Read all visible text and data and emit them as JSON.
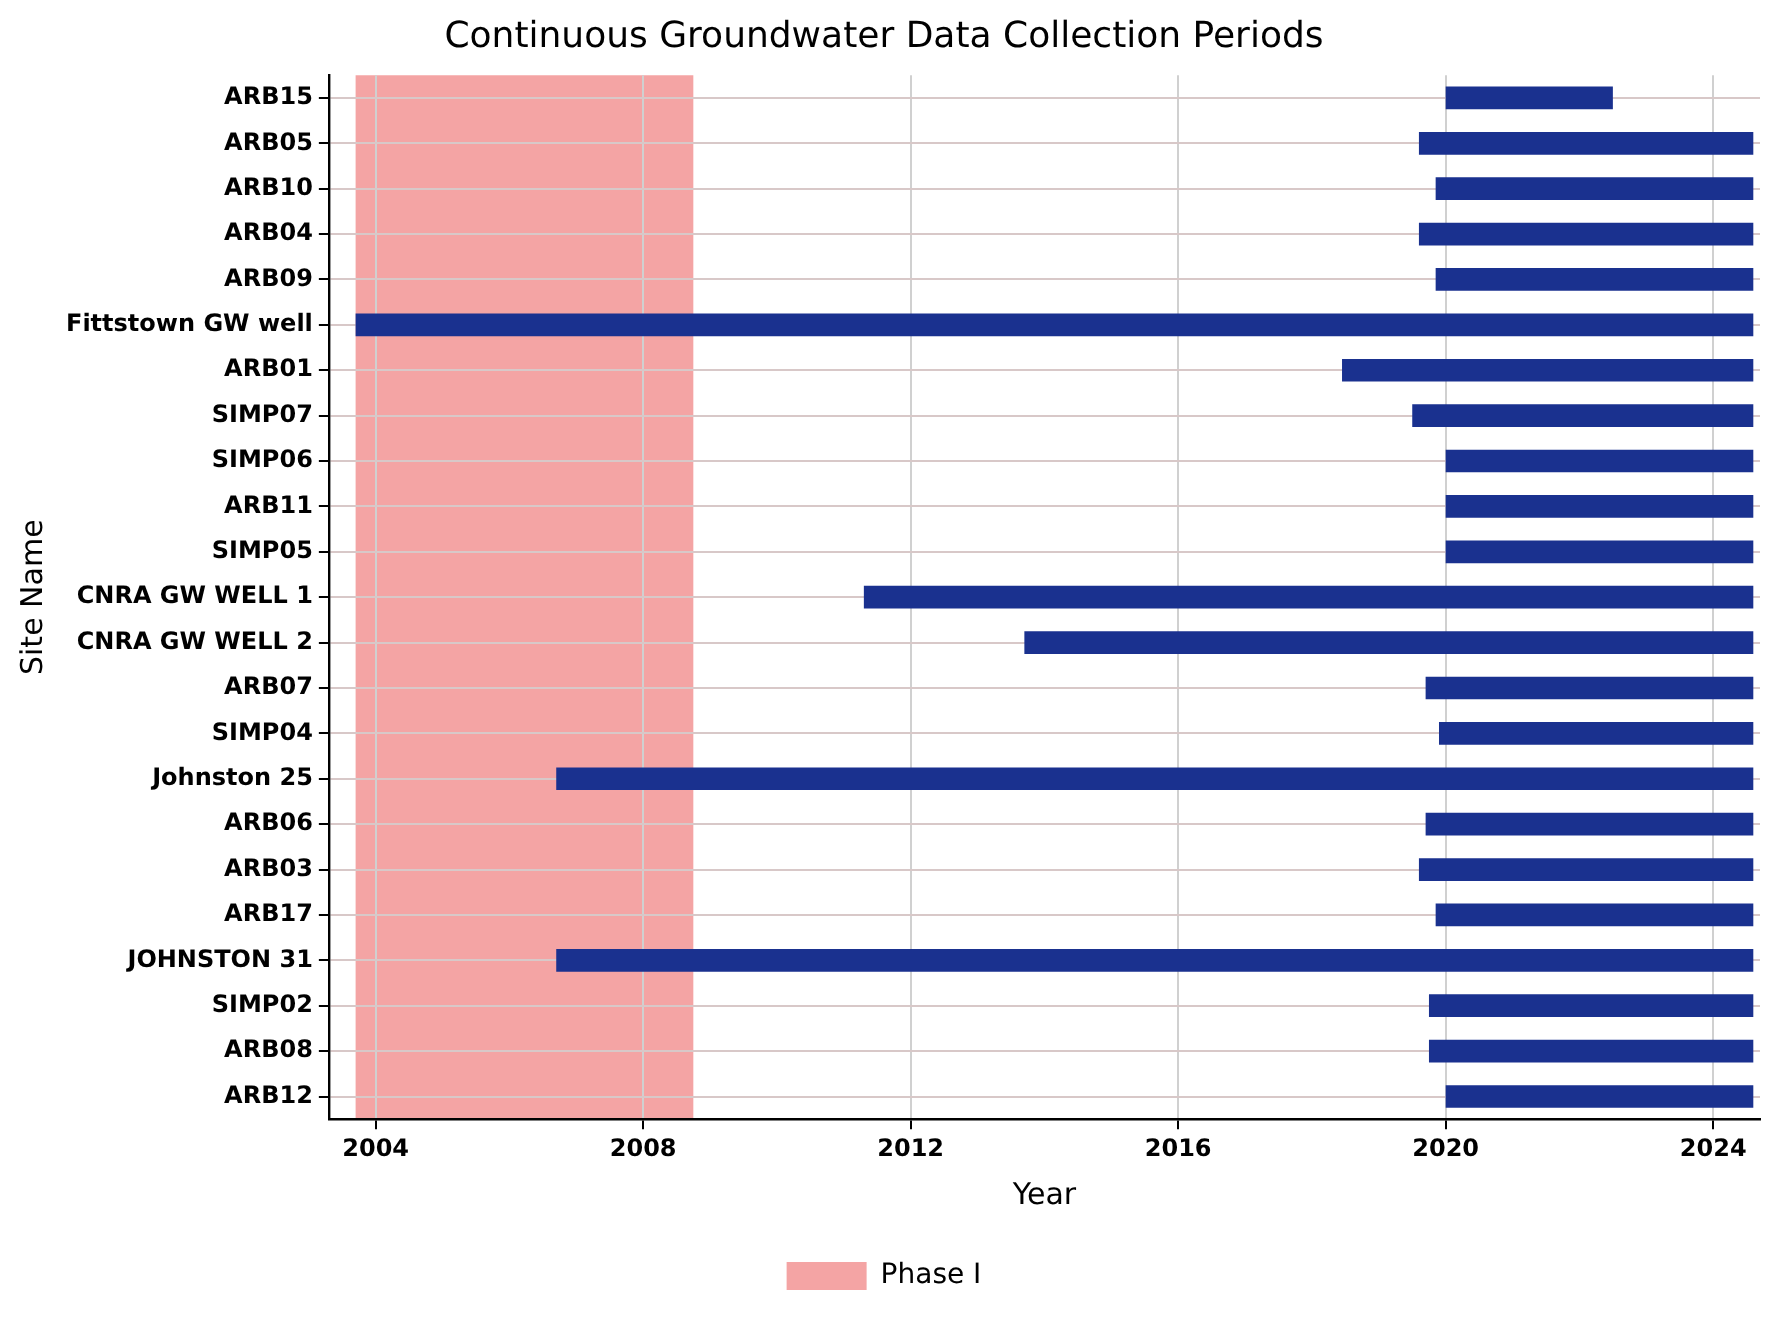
{
  "chart_data": {
    "type": "bar",
    "orientation": "horizontal",
    "title": "Continuous Groundwater Data Collection Periods",
    "xlabel": "Year",
    "ylabel": "Site Name",
    "categories": [
      "ARB15",
      "ARB05",
      "ARB10",
      "ARB04",
      "ARB09",
      "Fittstown GW well",
      "ARB01",
      "SIMP07",
      "SIMP06",
      "ARB11",
      "SIMP05",
      "CNRA GW WELL 1",
      "CNRA GW WELL 2",
      "ARB07",
      "SIMP04",
      "Johnston 25",
      "ARB06",
      "ARB03",
      "ARB17",
      "JOHNSTON 31",
      "SIMP02",
      "ARB08",
      "ARB12"
    ],
    "base": [
      2020.0,
      2019.6,
      2019.85,
      2019.6,
      2019.85,
      2003.7,
      2018.45,
      2019.5,
      2020.0,
      2020.0,
      2020.0,
      2011.3,
      2013.7,
      2019.7,
      2019.9,
      2006.7,
      2019.7,
      2019.6,
      2019.85,
      2006.7,
      2019.75,
      2019.75,
      2020.0
    ],
    "values": [
      2.5,
      5.0,
      4.75,
      5.0,
      4.75,
      20.9,
      6.15,
      5.1,
      4.6,
      4.6,
      4.6,
      13.3,
      10.9,
      4.9,
      4.7,
      17.9,
      4.9,
      5.0,
      4.75,
      17.9,
      4.85,
      4.85,
      4.6
    ],
    "color": "#1a318f",
    "xlim": [
      2003.3,
      2024.7
    ],
    "xticks": [
      2004,
      2008,
      2012,
      2016,
      2020,
      2024
    ],
    "bands": [
      {
        "axis": "x",
        "from": 2003.7,
        "to": 2008.75,
        "label": "Phase I",
        "color": "#f4a4a4"
      }
    ],
    "grid": true,
    "legend": "bottom"
  }
}
